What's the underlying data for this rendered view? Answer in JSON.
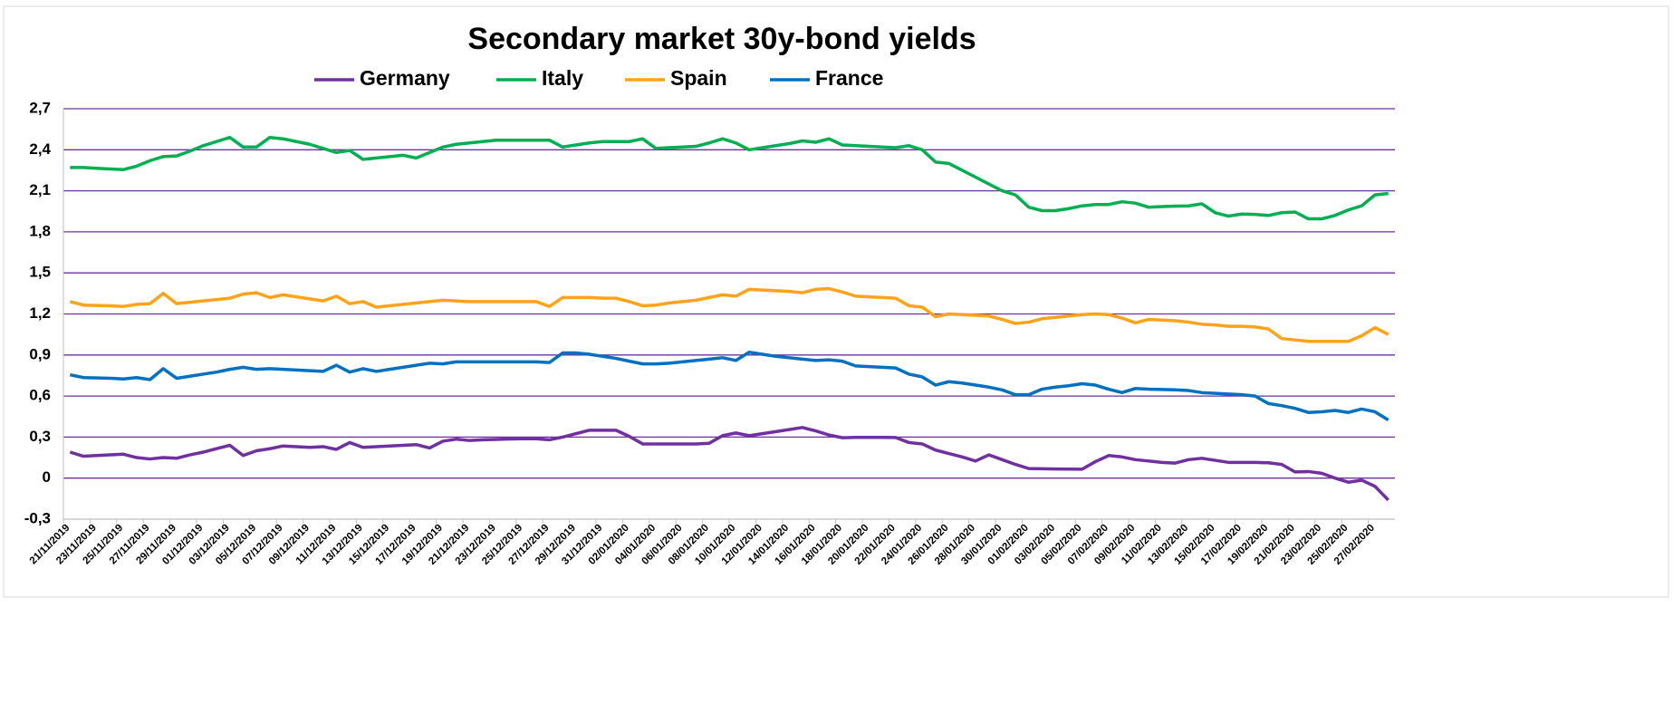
{
  "chart_data": {
    "type": "line",
    "title": "Secondary market 30y-bond yields",
    "categories": [
      "21/11/2019",
      null,
      "23/11/2019",
      null,
      "25/11/2019",
      null,
      "27/11/2019",
      null,
      "29/11/2019",
      null,
      "01/12/2019",
      null,
      "03/12/2019",
      null,
      "05/12/2019",
      null,
      "07/12/2019",
      null,
      "09/12/2019",
      null,
      "11/12/2019",
      null,
      "13/12/2019",
      null,
      "15/12/2019",
      null,
      "17/12/2019",
      null,
      "19/12/2019",
      null,
      "21/12/2019",
      null,
      "23/12/2019",
      null,
      "25/12/2019",
      null,
      "27/12/2019",
      null,
      "29/12/2019",
      null,
      "31/12/2019",
      null,
      "02/01/2020",
      null,
      "04/01/2020",
      null,
      "06/01/2020",
      null,
      "08/01/2020",
      null,
      "10/01/2020",
      null,
      "12/01/2020",
      null,
      "14/01/2020",
      null,
      "16/01/2020",
      null,
      "18/01/2020",
      null,
      "20/01/2020",
      null,
      "22/01/2020",
      null,
      "24/01/2020",
      null,
      "26/01/2020",
      null,
      "28/01/2020",
      null,
      "30/01/2020",
      null,
      "01/02/2020",
      null,
      "03/02/2020",
      null,
      "05/02/2020",
      null,
      "07/02/2020",
      null,
      "09/02/2020",
      null,
      "11/02/2020",
      null,
      "13/02/2020",
      null,
      "15/02/2020",
      null,
      "17/02/2020",
      null,
      "19/02/2020",
      null,
      "21/02/2020",
      null,
      "23/02/2020",
      null,
      "25/02/2020",
      null,
      "27/02/2020",
      null
    ],
    "series": [
      {
        "name": "Germany",
        "color": "#7030a0",
        "values": [
          0.19,
          0.16,
          0.165,
          0.17,
          0.175,
          0.15,
          0.14,
          0.15,
          0.145,
          0.17,
          0.19,
          0.215,
          0.24,
          0.165,
          0.2,
          0.215,
          0.235,
          0.23,
          0.225,
          0.23,
          0.21,
          0.26,
          0.225,
          0.23,
          0.235,
          0.24,
          0.245,
          0.22,
          0.27,
          0.285,
          0.275,
          0.28,
          0.283,
          0.286,
          0.288,
          0.288,
          0.28,
          0.3,
          0.325,
          0.35,
          0.35,
          0.35,
          0.305,
          0.25,
          0.25,
          0.25,
          0.25,
          0.25,
          0.255,
          0.31,
          0.33,
          0.31,
          0.325,
          0.34,
          0.355,
          0.37,
          0.345,
          0.315,
          0.295,
          0.298,
          0.298,
          0.298,
          0.297,
          0.26,
          0.25,
          0.205,
          0.18,
          0.155,
          0.125,
          0.17,
          0.135,
          0.1,
          0.07,
          0.068,
          0.067,
          0.066,
          0.065,
          0.12,
          0.165,
          0.155,
          0.135,
          0.125,
          0.115,
          0.11,
          0.135,
          0.145,
          0.13,
          0.115,
          0.115,
          0.115,
          0.112,
          0.1,
          0.045,
          0.048,
          0.035,
          0,
          -0.03,
          -0.015,
          -0.06,
          -0.16
        ]
      },
      {
        "name": "Italy",
        "color": "#00b050",
        "values": [
          2.27,
          2.27,
          2.265,
          2.26,
          2.255,
          2.28,
          2.32,
          2.35,
          2.355,
          2.39,
          2.43,
          2.46,
          2.49,
          2.42,
          2.42,
          2.49,
          2.48,
          2.46,
          2.44,
          2.41,
          2.38,
          2.395,
          2.33,
          2.34,
          2.35,
          2.36,
          2.34,
          2.38,
          2.42,
          2.44,
          2.45,
          2.46,
          2.47,
          2.47,
          2.47,
          2.47,
          2.47,
          2.42,
          2.435,
          2.45,
          2.46,
          2.46,
          2.46,
          2.48,
          2.41,
          2.415,
          2.42,
          2.425,
          2.45,
          2.48,
          2.45,
          2.4,
          2.415,
          2.43,
          2.445,
          2.465,
          2.455,
          2.48,
          2.435,
          2.43,
          2.425,
          2.42,
          2.415,
          2.43,
          2.4,
          2.31,
          2.3,
          2.25,
          2.2,
          2.15,
          2.1,
          2.07,
          1.98,
          1.955,
          1.955,
          1.97,
          1.99,
          2.0,
          2.0,
          2.02,
          2.01,
          1.98,
          1.985,
          1.988,
          1.99,
          2.005,
          1.94,
          1.915,
          1.93,
          1.928,
          1.92,
          1.94,
          1.945,
          1.895,
          1.895,
          1.92,
          1.96,
          1.99,
          2.07,
          2.08
        ]
      },
      {
        "name": "Spain",
        "color": "#ffa31a",
        "values": [
          1.29,
          1.265,
          1.262,
          1.26,
          1.255,
          1.27,
          1.275,
          1.35,
          1.275,
          1.285,
          1.295,
          1.305,
          1.315,
          1.345,
          1.355,
          1.32,
          1.34,
          1.325,
          1.31,
          1.295,
          1.33,
          1.275,
          1.29,
          1.25,
          1.26,
          1.27,
          1.28,
          1.29,
          1.3,
          1.295,
          1.29,
          1.29,
          1.29,
          1.29,
          1.29,
          1.29,
          1.255,
          1.32,
          1.32,
          1.32,
          1.315,
          1.315,
          1.29,
          1.26,
          1.265,
          1.28,
          1.29,
          1.3,
          1.32,
          1.34,
          1.33,
          1.38,
          1.375,
          1.37,
          1.365,
          1.355,
          1.38,
          1.385,
          1.36,
          1.33,
          1.325,
          1.32,
          1.315,
          1.26,
          1.25,
          1.18,
          1.2,
          1.195,
          1.19,
          1.185,
          1.16,
          1.13,
          1.14,
          1.165,
          1.175,
          1.185,
          1.195,
          1.2,
          1.195,
          1.17,
          1.135,
          1.16,
          1.155,
          1.15,
          1.14,
          1.125,
          1.12,
          1.11,
          1.11,
          1.105,
          1.09,
          1.02,
          1.01,
          1.0,
          1.0,
          1.0,
          1.0,
          1.04,
          1.1,
          1.05
        ]
      },
      {
        "name": "France",
        "color": "#0070c0",
        "values": [
          0.755,
          0.735,
          0.732,
          0.73,
          0.725,
          0.735,
          0.72,
          0.8,
          0.73,
          0.745,
          0.76,
          0.775,
          0.795,
          0.81,
          0.795,
          0.8,
          0.795,
          0.79,
          0.785,
          0.78,
          0.825,
          0.775,
          0.8,
          0.78,
          0.795,
          0.81,
          0.825,
          0.84,
          0.835,
          0.85,
          0.85,
          0.85,
          0.85,
          0.85,
          0.85,
          0.85,
          0.845,
          0.915,
          0.915,
          0.905,
          0.89,
          0.875,
          0.855,
          0.835,
          0.835,
          0.84,
          0.85,
          0.86,
          0.87,
          0.88,
          0.86,
          0.92,
          0.905,
          0.89,
          0.88,
          0.87,
          0.86,
          0.865,
          0.855,
          0.82,
          0.815,
          0.81,
          0.805,
          0.76,
          0.74,
          0.68,
          0.705,
          0.695,
          0.68,
          0.665,
          0.645,
          0.61,
          0.61,
          0.65,
          0.665,
          0.675,
          0.69,
          0.68,
          0.65,
          0.625,
          0.655,
          0.65,
          0.648,
          0.645,
          0.64,
          0.625,
          0.62,
          0.615,
          0.61,
          0.6,
          0.545,
          0.53,
          0.51,
          0.48,
          0.485,
          0.495,
          0.48,
          0.505,
          0.485,
          0.425
        ]
      }
    ],
    "ylim": [
      -0.3,
      2.7
    ],
    "yticks": [
      {
        "value": -0.3,
        "label": "-0,3"
      },
      0,
      {
        "value": 0.3,
        "label": "0,3"
      },
      {
        "value": 0.6,
        "label": "0,6"
      },
      {
        "value": 0.9,
        "label": "0,9"
      },
      {
        "value": 1.2,
        "label": "1,2"
      },
      {
        "value": 1.5,
        "label": "1,5"
      },
      {
        "value": 1.8,
        "label": "1,8"
      },
      {
        "value": 2.1,
        "label": "2,1"
      },
      {
        "value": 2.4,
        "label": "2,4"
      },
      {
        "value": 2.7,
        "label": "2,7"
      }
    ],
    "grid": true,
    "legend": "top"
  }
}
